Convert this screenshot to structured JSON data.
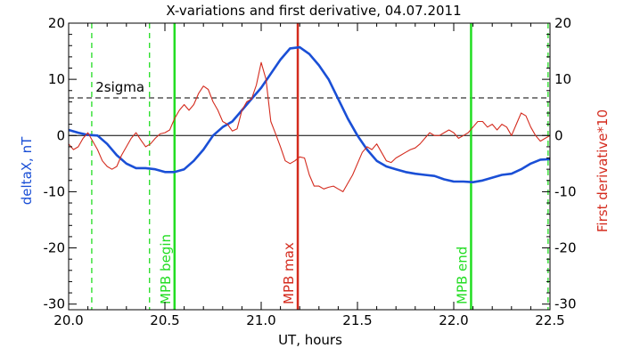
{
  "chart_data": {
    "type": "line",
    "title": "X-variations and first derivative, 04.07.2011",
    "xlabel": "UT, hours",
    "ylabel_left": "deltaX, nT",
    "ylabel_right": "First derivative*10",
    "xlim": [
      20.0,
      22.5
    ],
    "ylim": [
      -31,
      20
    ],
    "x_ticks": [
      "20.0",
      "20.5",
      "21.0",
      "21.5",
      "22.0",
      "22.5"
    ],
    "y_ticks": [
      "-30",
      "-20",
      "-10",
      "0",
      "10",
      "20"
    ],
    "sigma_label": "2sigma",
    "sigma_level": 6.7,
    "zero_level": 0,
    "colors": {
      "deltaX": "#1a4fd6",
      "derivative": "#d42b1e",
      "mpb_markers": "#22dd22",
      "mpb_max_marker": "#d42b1e",
      "reference_lines": "#000000"
    },
    "series": [
      {
        "name": "deltaX",
        "color": "#1a4fd6",
        "axis": "left",
        "x": [
          20.0,
          20.05,
          20.1,
          20.15,
          20.2,
          20.25,
          20.3,
          20.35,
          20.4,
          20.45,
          20.5,
          20.55,
          20.6,
          20.65,
          20.7,
          20.75,
          20.8,
          20.85,
          20.9,
          20.95,
          21.0,
          21.05,
          21.1,
          21.15,
          21.2,
          21.25,
          21.3,
          21.35,
          21.4,
          21.45,
          21.5,
          21.55,
          21.6,
          21.65,
          21.7,
          21.75,
          21.8,
          21.85,
          21.9,
          21.95,
          22.0,
          22.05,
          22.1,
          22.15,
          22.2,
          22.25,
          22.3,
          22.35,
          22.4,
          22.45,
          22.5
        ],
        "y": [
          1.0,
          0.5,
          0.1,
          0.0,
          -1.5,
          -3.5,
          -5.0,
          -5.8,
          -5.8,
          -6.0,
          -6.5,
          -6.5,
          -6.0,
          -4.5,
          -2.5,
          0.0,
          1.5,
          2.5,
          4.5,
          6.5,
          8.5,
          11.0,
          13.5,
          15.5,
          15.7,
          14.5,
          12.5,
          10.0,
          6.5,
          3.0,
          0.0,
          -2.5,
          -4.5,
          -5.5,
          -6.0,
          -6.5,
          -6.8,
          -7.0,
          -7.2,
          -7.8,
          -8.2,
          -8.2,
          -8.3,
          -8.0,
          -7.5,
          -7.0,
          -6.8,
          -6.0,
          -5.0,
          -4.3,
          -4.2
        ]
      },
      {
        "name": "First derivative*10",
        "color": "#d42b1e",
        "axis": "right",
        "x": [
          20.0,
          20.025,
          20.05,
          20.075,
          20.1,
          20.125,
          20.15,
          20.175,
          20.2,
          20.225,
          20.25,
          20.275,
          20.3,
          20.325,
          20.35,
          20.375,
          20.4,
          20.425,
          20.45,
          20.475,
          20.5,
          20.525,
          20.55,
          20.575,
          20.6,
          20.625,
          20.65,
          20.675,
          20.7,
          20.725,
          20.75,
          20.775,
          20.8,
          20.825,
          20.85,
          20.875,
          20.9,
          20.925,
          20.95,
          20.975,
          21.0,
          21.025,
          21.05,
          21.075,
          21.1,
          21.125,
          21.15,
          21.175,
          21.2,
          21.225,
          21.25,
          21.275,
          21.3,
          21.325,
          21.35,
          21.375,
          21.4,
          21.425,
          21.45,
          21.475,
          21.5,
          21.525,
          21.55,
          21.575,
          21.6,
          21.625,
          21.65,
          21.675,
          21.7,
          21.725,
          21.75,
          21.775,
          21.8,
          21.825,
          21.85,
          21.875,
          21.9,
          21.925,
          21.95,
          21.975,
          22.0,
          22.025,
          22.05,
          22.075,
          22.1,
          22.125,
          22.15,
          22.175,
          22.2,
          22.225,
          22.25,
          22.275,
          22.3,
          22.325,
          22.35,
          22.375,
          22.4,
          22.425,
          22.45,
          22.475,
          22.5
        ],
        "y": [
          -1.5,
          -2.5,
          -2.0,
          -0.5,
          0.5,
          -1.0,
          -2.5,
          -4.5,
          -5.5,
          -6.0,
          -5.5,
          -3.5,
          -2.0,
          -0.5,
          0.5,
          -0.8,
          -2.0,
          -1.5,
          -0.5,
          0.3,
          0.5,
          1.0,
          3.0,
          4.5,
          5.5,
          4.5,
          5.5,
          7.5,
          8.8,
          8.2,
          6.0,
          4.5,
          2.5,
          2.0,
          0.8,
          1.2,
          4.5,
          6.0,
          6.5,
          9.0,
          13.0,
          10.0,
          2.5,
          0.3,
          -2.0,
          -4.5,
          -5.0,
          -4.5,
          -3.8,
          -4.0,
          -7.0,
          -9.0,
          -9.0,
          -9.5,
          -9.2,
          -9.0,
          -9.5,
          -10.0,
          -8.5,
          -7.0,
          -5.0,
          -3.0,
          -2.0,
          -2.5,
          -1.5,
          -3.0,
          -4.5,
          -4.8,
          -4.0,
          -3.5,
          -3.0,
          -2.5,
          -2.2,
          -1.5,
          -0.5,
          0.5,
          0.0,
          0.0,
          0.5,
          1.0,
          0.5,
          -0.5,
          0.0,
          0.5,
          1.5,
          2.5,
          2.5,
          1.5,
          2.0,
          1.0,
          2.0,
          1.5,
          0.0,
          2.0,
          4.0,
          3.5,
          1.5,
          0.0,
          -1.0,
          -0.5,
          0.0
        ]
      }
    ],
    "markers": [
      {
        "x": 20.12,
        "style": "dashed",
        "color": "#22dd22",
        "label": ""
      },
      {
        "x": 20.42,
        "style": "dashed",
        "color": "#22dd22",
        "label": ""
      },
      {
        "x": 20.55,
        "style": "solid",
        "color": "#22dd22",
        "label": "MPB begin"
      },
      {
        "x": 21.19,
        "style": "solid",
        "color": "#d42b1e",
        "label": "MPB max"
      },
      {
        "x": 22.09,
        "style": "solid",
        "color": "#22dd22",
        "label": "MPB end"
      },
      {
        "x": 22.49,
        "style": "dashed",
        "color": "#22dd22",
        "label": ""
      }
    ]
  }
}
